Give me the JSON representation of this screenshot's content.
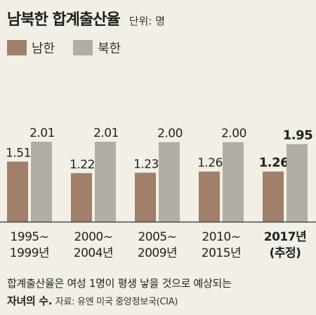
{
  "header": {
    "title": "남북한 합계출산율",
    "unit": "단위: 명"
  },
  "colors": {
    "south": "#a0806a",
    "north": "#b1aea5",
    "background": "#f2efe6",
    "axis": "#4a4a4a"
  },
  "chart_data": {
    "type": "bar",
    "title": "남북한 합계출산율",
    "unit": "명",
    "categories": [
      "1995~1999년",
      "2000~2004년",
      "2005~2009년",
      "2010~2015년",
      "2017년(추정)"
    ],
    "category_lines": [
      [
        "1995~",
        "1999년"
      ],
      [
        "2000~",
        "2004년"
      ],
      [
        "2005~",
        "2009년"
      ],
      [
        "2010~",
        "2015년"
      ],
      [
        "2017년",
        "(추정)"
      ]
    ],
    "series": [
      {
        "name": "남한",
        "values": [
          1.51,
          1.22,
          1.23,
          1.26,
          1.26
        ],
        "labels": [
          "1.51",
          "1.22",
          "1.23",
          "1.26",
          "1.26"
        ]
      },
      {
        "name": "북한",
        "values": [
          2.01,
          2.01,
          2.0,
          2.0,
          1.95
        ],
        "labels": [
          "2.01",
          "2.01",
          "2.00",
          "2.00",
          "1.95"
        ]
      }
    ],
    "highlight_category": 4,
    "legend_position": "top-left",
    "grid": false
  },
  "footnote": {
    "text_line1": "합계출산율은 여성 1명이 평생 낳을 것으로 예상되는",
    "text_line2": "자녀의 수.",
    "source": "자료: 유엔 미국 중앙정보국(CIA)"
  }
}
